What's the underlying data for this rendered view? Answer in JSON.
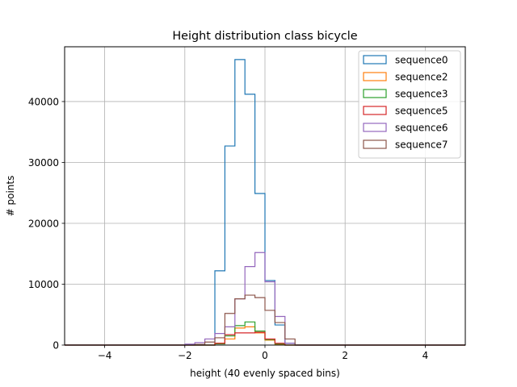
{
  "chart_data": {
    "type": "histogram",
    "title": "Height distribution class bicycle",
    "xlabel": "height (40 evenly spaced bins)",
    "ylabel": "# points",
    "xlim": [
      -5,
      5
    ],
    "ylim": [
      0,
      49000
    ],
    "x_ticks": [
      -4,
      -2,
      0,
      2,
      4
    ],
    "x_tick_labels": [
      "−4",
      "−2",
      "0",
      "2",
      "4"
    ],
    "y_ticks": [
      0,
      10000,
      20000,
      30000,
      40000
    ],
    "y_tick_labels": [
      "0",
      "10000",
      "20000",
      "30000",
      "40000"
    ],
    "grid": true,
    "legend_position": "top-right",
    "bin_edges": [
      -5,
      -4.75,
      -4.5,
      -4.25,
      -4,
      -3.75,
      -3.5,
      -3.25,
      -3,
      -2.75,
      -2.5,
      -2.25,
      -2,
      -1.75,
      -1.5,
      -1.25,
      -1,
      -0.75,
      -0.5,
      -0.25,
      0,
      0.25,
      0.5,
      0.75,
      1,
      1.25,
      1.5,
      1.75,
      2,
      2.25,
      2.5,
      2.75,
      3,
      3.25,
      3.5,
      3.75,
      4,
      4.25,
      4.5,
      4.75,
      5
    ],
    "series": [
      {
        "name": "sequence0",
        "color": "#1f77b4",
        "values": [
          0,
          0,
          0,
          0,
          0,
          0,
          0,
          0,
          0,
          0,
          0,
          0,
          0,
          0,
          0,
          12200,
          32700,
          46900,
          41200,
          24900,
          10600,
          3300,
          300,
          0,
          0,
          0,
          0,
          0,
          0,
          0,
          0,
          0,
          0,
          0,
          0,
          0,
          0,
          0,
          0,
          0
        ]
      },
      {
        "name": "sequence2",
        "color": "#ff7f0e",
        "values": [
          0,
          0,
          0,
          0,
          0,
          0,
          0,
          0,
          0,
          0,
          0,
          0,
          0,
          0,
          0,
          300,
          1000,
          2800,
          3000,
          2000,
          800,
          150,
          0,
          0,
          0,
          0,
          0,
          0,
          0,
          0,
          0,
          0,
          0,
          0,
          0,
          0,
          0,
          0,
          0,
          0
        ]
      },
      {
        "name": "sequence3",
        "color": "#2ca02c",
        "values": [
          0,
          0,
          0,
          0,
          0,
          0,
          0,
          0,
          0,
          0,
          0,
          0,
          0,
          0,
          0,
          200,
          1500,
          3200,
          3800,
          2300,
          900,
          200,
          0,
          0,
          0,
          0,
          0,
          0,
          0,
          0,
          0,
          0,
          0,
          0,
          0,
          0,
          0,
          0,
          0,
          0
        ]
      },
      {
        "name": "sequence5",
        "color": "#d62728",
        "values": [
          0,
          0,
          0,
          0,
          0,
          0,
          0,
          0,
          0,
          0,
          0,
          0,
          0,
          0,
          0,
          300,
          1700,
          2000,
          2000,
          2100,
          1000,
          300,
          0,
          0,
          0,
          0,
          0,
          0,
          0,
          0,
          0,
          0,
          0,
          0,
          0,
          0,
          0,
          0,
          0,
          0
        ]
      },
      {
        "name": "sequence6",
        "color": "#9467bd",
        "values": [
          0,
          0,
          0,
          0,
          0,
          0,
          0,
          0,
          0,
          0,
          0,
          0,
          150,
          400,
          1000,
          1900,
          3000,
          7600,
          12900,
          15200,
          10400,
          4700,
          300,
          0,
          0,
          0,
          0,
          0,
          0,
          0,
          0,
          0,
          0,
          0,
          0,
          0,
          0,
          0,
          0,
          0
        ]
      },
      {
        "name": "sequence7",
        "color": "#8c564b",
        "values": [
          0,
          0,
          0,
          0,
          0,
          0,
          0,
          0,
          0,
          0,
          0,
          0,
          0,
          100,
          500,
          1200,
          5200,
          7600,
          8200,
          7800,
          5700,
          3700,
          1000,
          0,
          0,
          0,
          0,
          0,
          0,
          0,
          0,
          0,
          0,
          0,
          0,
          0,
          0,
          0,
          0,
          0
        ]
      }
    ]
  }
}
